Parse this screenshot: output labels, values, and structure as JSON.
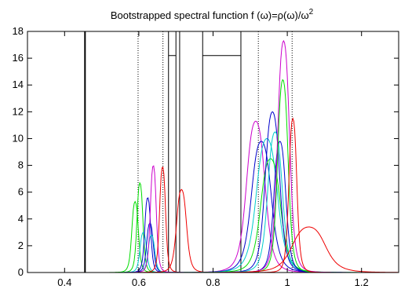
{
  "chart_data": {
    "type": "line",
    "title": "Bootstrapped spectral function f (ω)=ρ(ω)/ω",
    "title_superscript": "2",
    "xlabel": "",
    "ylabel": "",
    "xlim": [
      0.3,
      1.3
    ],
    "ylim": [
      0,
      18
    ],
    "xticks": [
      0.4,
      0.6,
      0.8,
      1.0,
      1.2
    ],
    "xtick_labels": [
      "0.4",
      "0.6",
      "0.8",
      "1",
      "1.2"
    ],
    "yticks": [
      0,
      2,
      4,
      6,
      8,
      10,
      12,
      14,
      16,
      18
    ],
    "ytick_labels": [
      "0",
      "2",
      "4",
      "6",
      "8",
      "10",
      "12",
      "14",
      "16",
      "18"
    ],
    "grid": false,
    "legend": "none",
    "vertical_lines": [
      {
        "x": 0.455,
        "style": "solid-thick",
        "color": "#000000"
      },
      {
        "x": 0.598,
        "style": "dotted",
        "color": "#000000"
      },
      {
        "x": 0.665,
        "style": "dotted",
        "color": "#000000"
      },
      {
        "x": 0.922,
        "style": "dotted",
        "color": "#000000"
      },
      {
        "x": 1.013,
        "style": "dotted",
        "color": "#000000"
      }
    ],
    "boxes": [
      {
        "x0": 0.68,
        "x1": 0.7,
        "top": 16.2,
        "color": "#000000"
      },
      {
        "x0": 0.772,
        "x1": 0.875,
        "top": 16.2,
        "color": "#000000"
      }
    ],
    "extra_lines": [
      {
        "x": 0.71,
        "color": "#000000"
      }
    ],
    "peaks": [
      {
        "color": "#00dd00",
        "center": 0.59,
        "height": 5.3,
        "width": 0.01
      },
      {
        "color": "#00dd00",
        "center": 0.603,
        "height": 6.7,
        "width": 0.009
      },
      {
        "color": "#00cccc",
        "center": 0.612,
        "height": 3.0,
        "width": 0.01
      },
      {
        "color": "#0000cc",
        "center": 0.624,
        "height": 5.6,
        "width": 0.009
      },
      {
        "color": "#0000cc",
        "center": 0.63,
        "height": 3.7,
        "width": 0.01
      },
      {
        "color": "#00cccc",
        "center": 0.634,
        "height": 2.8,
        "width": 0.01
      },
      {
        "color": "#cc00cc",
        "center": 0.639,
        "height": 8.0,
        "width": 0.009
      },
      {
        "color": "#ee0000",
        "center": 0.664,
        "height": 7.9,
        "width": 0.009
      },
      {
        "color": "#ee0000",
        "center": 0.715,
        "height": 6.2,
        "width": 0.015
      },
      {
        "color": "#cc00cc",
        "center": 0.915,
        "height": 11.3,
        "width": 0.028
      },
      {
        "color": "#0000cc",
        "center": 0.93,
        "height": 9.8,
        "width": 0.03
      },
      {
        "color": "#00cccc",
        "center": 0.945,
        "height": 10.0,
        "width": 0.032
      },
      {
        "color": "#00dd00",
        "center": 0.955,
        "height": 8.5,
        "width": 0.03
      },
      {
        "color": "#0000cc",
        "center": 0.96,
        "height": 12.0,
        "width": 0.022
      },
      {
        "color": "#00cccc",
        "center": 0.967,
        "height": 10.5,
        "width": 0.022
      },
      {
        "color": "#0000cc",
        "center": 0.98,
        "height": 9.8,
        "width": 0.018
      },
      {
        "color": "#00dd00",
        "center": 0.988,
        "height": 14.4,
        "width": 0.016
      },
      {
        "color": "#cc00cc",
        "center": 0.99,
        "height": 17.3,
        "width": 0.018
      },
      {
        "color": "#ee0000",
        "center": 1.015,
        "height": 11.5,
        "width": 0.012
      },
      {
        "color": "#ee0000",
        "center": 1.058,
        "height": 3.4,
        "width": 0.05
      }
    ]
  }
}
